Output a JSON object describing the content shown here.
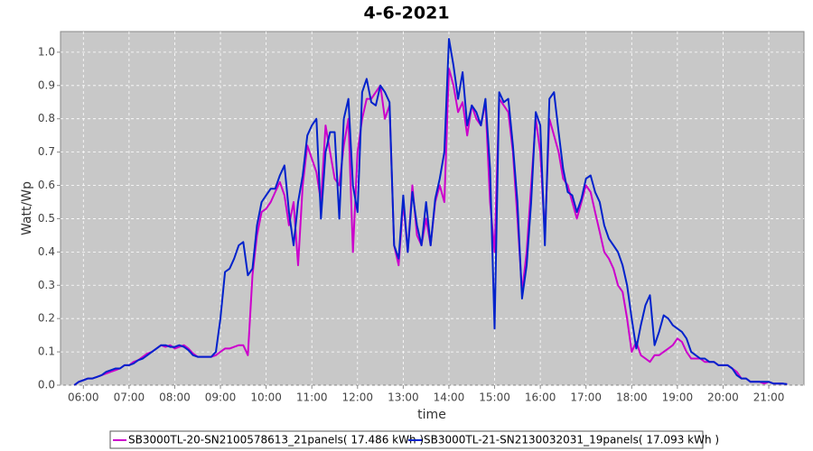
{
  "chart_data": {
    "type": "line",
    "title": "4-6-2021",
    "x_label": "time",
    "y_label": "Watt/Wp",
    "x": [
      5.8,
      5.9,
      6.0,
      6.1,
      6.2,
      6.3,
      6.4,
      6.5,
      6.6,
      6.7,
      6.8,
      6.9,
      7.0,
      7.1,
      7.2,
      7.3,
      7.4,
      7.5,
      7.6,
      7.7,
      7.8,
      7.9,
      8.0,
      8.1,
      8.2,
      8.3,
      8.4,
      8.5,
      8.6,
      8.7,
      8.8,
      8.9,
      9.0,
      9.1,
      9.2,
      9.3,
      9.4,
      9.5,
      9.6,
      9.7,
      9.8,
      9.9,
      10.0,
      10.1,
      10.2,
      10.3,
      10.4,
      10.5,
      10.6,
      10.7,
      10.8,
      10.9,
      11.0,
      11.1,
      11.2,
      11.3,
      11.4,
      11.5,
      11.6,
      11.7,
      11.8,
      11.9,
      12.0,
      12.1,
      12.2,
      12.3,
      12.4,
      12.5,
      12.6,
      12.7,
      12.8,
      12.9,
      13.0,
      13.1,
      13.2,
      13.3,
      13.4,
      13.5,
      13.6,
      13.7,
      13.8,
      13.9,
      14.0,
      14.1,
      14.2,
      14.3,
      14.4,
      14.5,
      14.6,
      14.7,
      14.8,
      14.9,
      15.0,
      15.1,
      15.2,
      15.3,
      15.4,
      15.5,
      15.6,
      15.7,
      15.8,
      15.9,
      16.0,
      16.1,
      16.2,
      16.3,
      16.4,
      16.5,
      16.6,
      16.7,
      16.8,
      16.9,
      17.0,
      17.1,
      17.2,
      17.3,
      17.4,
      17.5,
      17.6,
      17.7,
      17.8,
      17.9,
      18.0,
      18.1,
      18.2,
      18.3,
      18.4,
      18.5,
      18.6,
      18.7,
      18.8,
      18.9,
      19.0,
      19.1,
      19.2,
      19.3,
      19.4,
      19.5,
      19.6,
      19.7,
      19.8,
      19.9,
      20.0,
      20.1,
      20.2,
      20.3,
      20.4,
      20.5,
      20.6,
      20.7,
      20.8,
      20.9,
      21.0,
      21.1,
      21.2,
      21.3,
      21.4
    ],
    "series": [
      {
        "name": "SB3000TL-20-SN2100578613_21panels( 17.486 kWh )",
        "color": "#cc00cc",
        "values": [
          0,
          0.01,
          0.015,
          0.02,
          0.02,
          0.025,
          0.03,
          0.035,
          0.04,
          0.045,
          0.05,
          0.06,
          0.06,
          0.07,
          0.075,
          0.085,
          0.095,
          0.1,
          0.11,
          0.12,
          0.115,
          0.12,
          0.11,
          0.115,
          0.12,
          0.11,
          0.095,
          0.085,
          0.085,
          0.085,
          0.085,
          0.09,
          0.1,
          0.11,
          0.11,
          0.115,
          0.12,
          0.12,
          0.09,
          0.33,
          0.45,
          0.52,
          0.53,
          0.55,
          0.58,
          0.61,
          0.57,
          0.48,
          0.55,
          0.36,
          0.6,
          0.72,
          0.68,
          0.64,
          0.55,
          0.78,
          0.7,
          0.62,
          0.6,
          0.72,
          0.8,
          0.4,
          0.7,
          0.8,
          0.86,
          0.86,
          0.88,
          0.9,
          0.8,
          0.84,
          0.42,
          0.36,
          0.55,
          0.4,
          0.6,
          0.45,
          0.42,
          0.5,
          0.42,
          0.55,
          0.6,
          0.55,
          0.95,
          0.9,
          0.82,
          0.85,
          0.75,
          0.84,
          0.8,
          0.78,
          0.85,
          0.55,
          0.4,
          0.86,
          0.84,
          0.82,
          0.7,
          0.5,
          0.28,
          0.4,
          0.6,
          0.8,
          0.7,
          0.45,
          0.8,
          0.75,
          0.7,
          0.62,
          0.6,
          0.55,
          0.5,
          0.55,
          0.6,
          0.58,
          0.52,
          0.46,
          0.4,
          0.38,
          0.35,
          0.3,
          0.28,
          0.2,
          0.1,
          0.13,
          0.09,
          0.08,
          0.07,
          0.09,
          0.09,
          0.1,
          0.11,
          0.12,
          0.14,
          0.13,
          0.1,
          0.08,
          0.08,
          0.08,
          0.07,
          0.07,
          0.07,
          0.06,
          0.06,
          0.06,
          0.05,
          0.04,
          0.02,
          0.02,
          0.01,
          0.01,
          0.01,
          0.005,
          0.01,
          0.005,
          0.005,
          0.005,
          0.003
        ]
      },
      {
        "name": "SB3000TL-21-SN2130032031_19panels( 17.093 kWh )",
        "color": "#0022cc",
        "values": [
          0,
          0.01,
          0.015,
          0.02,
          0.02,
          0.025,
          0.03,
          0.04,
          0.045,
          0.05,
          0.05,
          0.06,
          0.06,
          0.065,
          0.075,
          0.08,
          0.09,
          0.1,
          0.11,
          0.12,
          0.12,
          0.115,
          0.115,
          0.12,
          0.115,
          0.105,
          0.09,
          0.085,
          0.085,
          0.085,
          0.085,
          0.1,
          0.2,
          0.34,
          0.35,
          0.38,
          0.42,
          0.43,
          0.33,
          0.35,
          0.48,
          0.55,
          0.57,
          0.59,
          0.59,
          0.63,
          0.66,
          0.52,
          0.42,
          0.55,
          0.63,
          0.75,
          0.78,
          0.8,
          0.5,
          0.7,
          0.76,
          0.76,
          0.5,
          0.8,
          0.86,
          0.6,
          0.52,
          0.88,
          0.92,
          0.85,
          0.84,
          0.9,
          0.88,
          0.85,
          0.42,
          0.38,
          0.57,
          0.4,
          0.58,
          0.48,
          0.42,
          0.55,
          0.42,
          0.56,
          0.62,
          0.7,
          1.04,
          0.96,
          0.86,
          0.94,
          0.78,
          0.84,
          0.82,
          0.78,
          0.86,
          0.65,
          0.17,
          0.88,
          0.85,
          0.86,
          0.72,
          0.55,
          0.26,
          0.36,
          0.55,
          0.82,
          0.78,
          0.42,
          0.86,
          0.88,
          0.76,
          0.65,
          0.58,
          0.57,
          0.52,
          0.56,
          0.62,
          0.63,
          0.58,
          0.55,
          0.48,
          0.44,
          0.42,
          0.4,
          0.36,
          0.3,
          0.2,
          0.11,
          0.18,
          0.24,
          0.27,
          0.12,
          0.16,
          0.21,
          0.2,
          0.18,
          0.17,
          0.16,
          0.14,
          0.1,
          0.09,
          0.08,
          0.08,
          0.07,
          0.07,
          0.06,
          0.06,
          0.06,
          0.05,
          0.03,
          0.02,
          0.02,
          0.01,
          0.01,
          0.01,
          0.01,
          0.01,
          0.005,
          0.005,
          0.005,
          0.003
        ]
      }
    ],
    "xlim": [
      5.5,
      21.77
    ],
    "xticks": [
      {
        "value": 6,
        "label": "06:00"
      },
      {
        "value": 7,
        "label": "07:00"
      },
      {
        "value": 8,
        "label": "08:00"
      },
      {
        "value": 9,
        "label": "09:00"
      },
      {
        "value": 10,
        "label": "10:00"
      },
      {
        "value": 11,
        "label": "11:00"
      },
      {
        "value": 12,
        "label": "12:00"
      },
      {
        "value": 13,
        "label": "13:00"
      },
      {
        "value": 14,
        "label": "14:00"
      },
      {
        "value": 15,
        "label": "15:00"
      },
      {
        "value": 16,
        "label": "16:00"
      },
      {
        "value": 17,
        "label": "17:00"
      },
      {
        "value": 18,
        "label": "18:00"
      },
      {
        "value": 19,
        "label": "19:00"
      },
      {
        "value": 20,
        "label": "20:00"
      },
      {
        "value": 21,
        "label": "21:00"
      }
    ],
    "ylim": [
      0,
      1.062
    ],
    "yticks": [
      {
        "value": 0,
        "label": "0.0"
      },
      0.1,
      0.2,
      0.3,
      0.4,
      0.5,
      0.6,
      0.7,
      0.8,
      0.9,
      {
        "value": 1,
        "label": "1.0"
      }
    ],
    "grid": true
  }
}
